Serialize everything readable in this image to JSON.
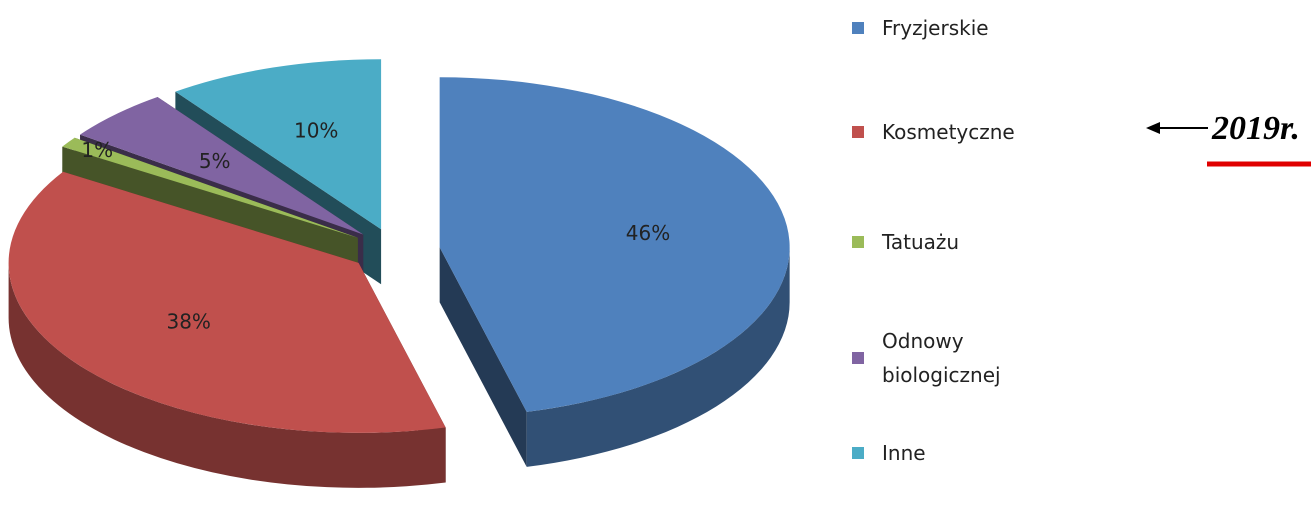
{
  "chart_data": {
    "type": "pie",
    "categories": [
      "Fryzjerskie",
      "Kosmetyczne",
      "Tatuażu",
      "Odnowy biologicznej",
      "Inne"
    ],
    "values": [
      46,
      38,
      1,
      5,
      10
    ],
    "value_labels": [
      "46%",
      "38%",
      "1%",
      "5%",
      "10%"
    ],
    "colors": [
      "#4f81bd",
      "#c0504d",
      "#9bbb59",
      "#8064a2",
      "#4bacc6"
    ],
    "legend": "right",
    "annotation": "2019r."
  }
}
